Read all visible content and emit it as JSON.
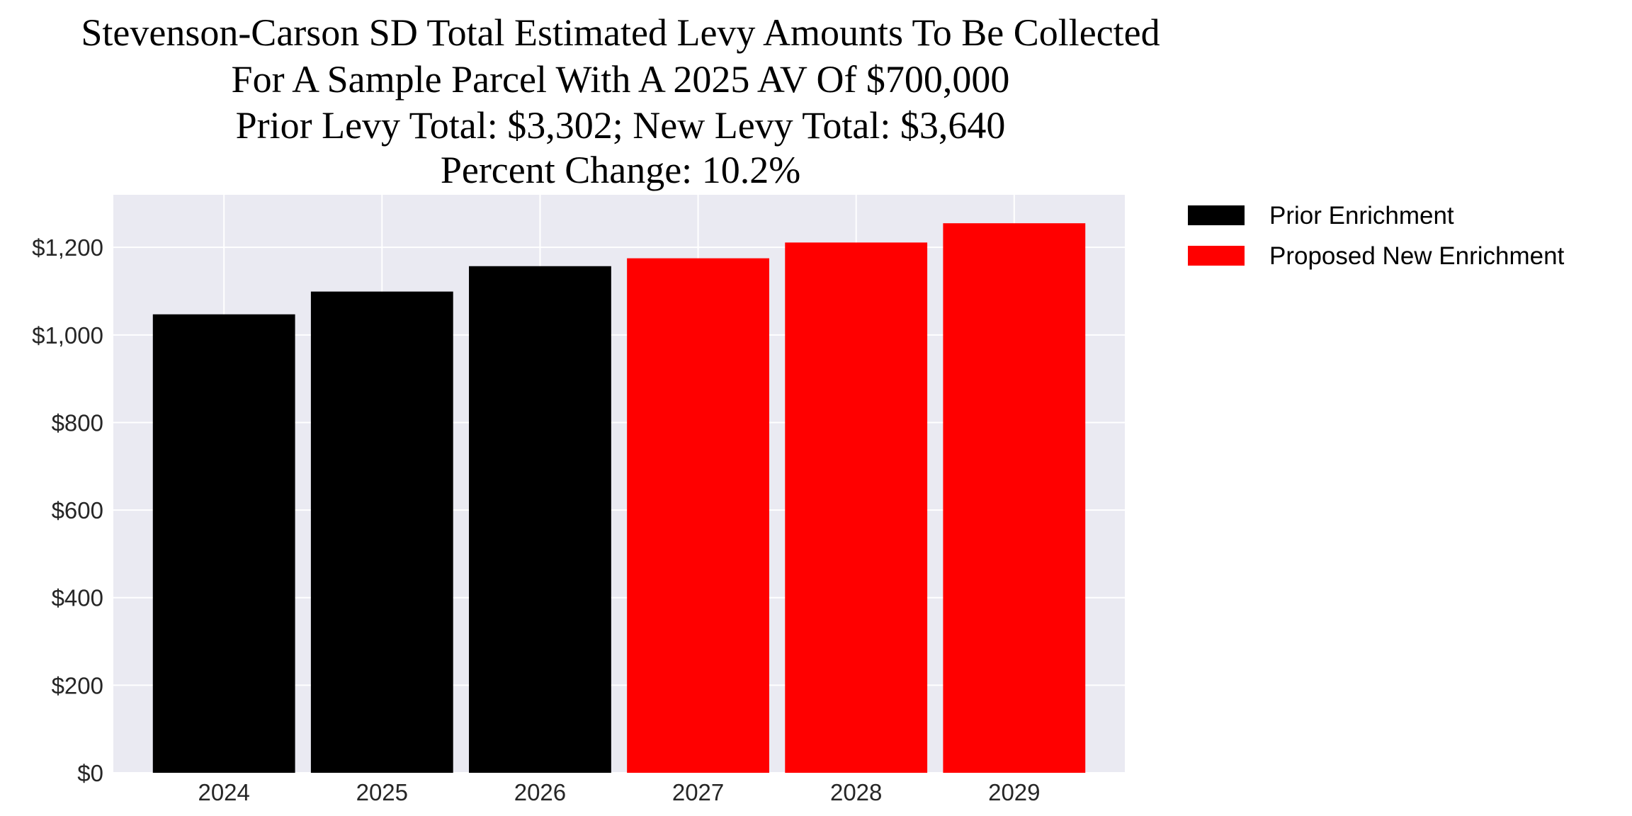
{
  "chart_data": {
    "type": "bar",
    "title_lines": [
      "Stevenson-Carson SD Total Estimated Levy Amounts To Be Collected",
      "For A Sample Parcel With A 2025 AV Of $700,000",
      "Prior Levy Total:  $3,302; New Levy Total: $3,640",
      "Percent Change: 10.2%"
    ],
    "xlabel": "",
    "ylabel": "",
    "categories": [
      "2024",
      "2025",
      "2026",
      "2027",
      "2028",
      "2029"
    ],
    "values": [
      1047,
      1099,
      1157,
      1175,
      1211,
      1255
    ],
    "bar_series": [
      "prior",
      "prior",
      "prior",
      "new",
      "new",
      "new"
    ],
    "series": [
      {
        "name": "Prior Enrichment",
        "key": "prior",
        "color": "#000000"
      },
      {
        "name": "Proposed New Enrichment",
        "key": "new",
        "color": "#ff0000"
      }
    ],
    "ylim": [
      0,
      1320
    ],
    "yticks": [
      0,
      200,
      400,
      600,
      800,
      1000,
      1200
    ],
    "ytick_labels": [
      "$0",
      "$200",
      "$400",
      "$600",
      "$800",
      "$1,000",
      "$1,200"
    ],
    "grid": true,
    "background": "#eaeaf2",
    "legend_position": "outside-top-right"
  }
}
